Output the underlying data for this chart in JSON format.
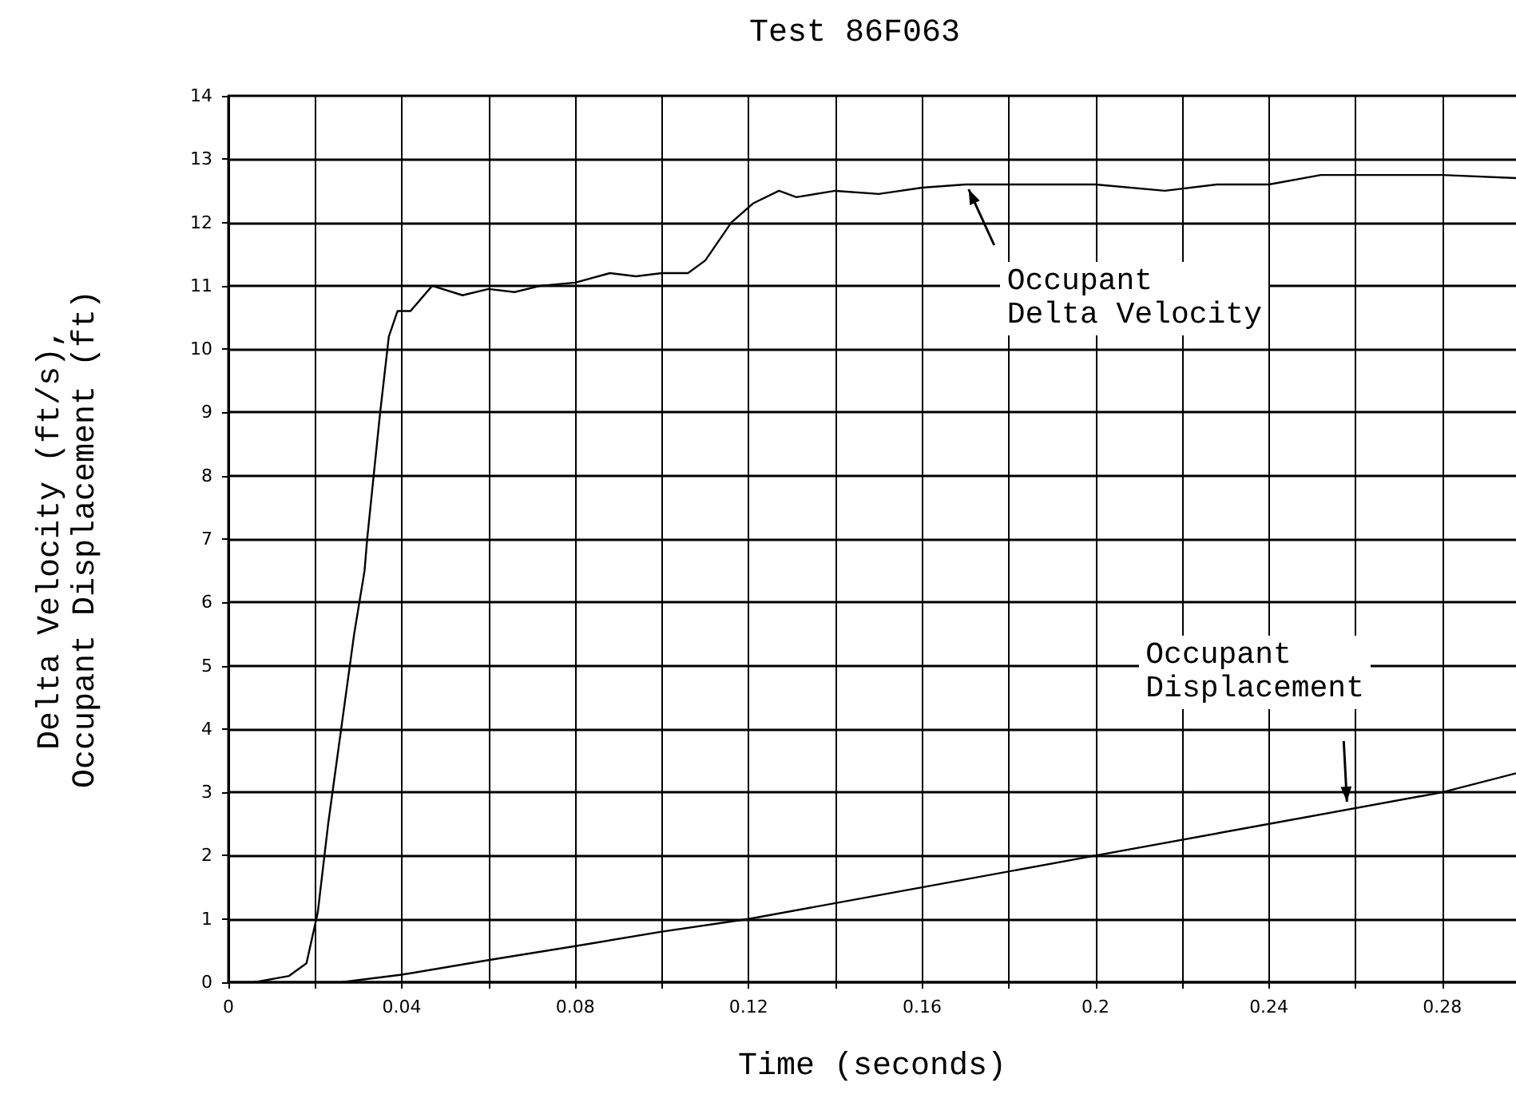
{
  "chart_data": {
    "type": "line",
    "title": "Test 86F063",
    "xlabel": "Time (seconds)",
    "ylabel": "Delta Velocity (ft/s),\nOccupant Displacement (ft)",
    "xlim": [
      0,
      0.297
    ],
    "ylim": [
      0,
      14
    ],
    "xticks": [
      0,
      {
        "value": 0.02,
        "label": null
      },
      0.04,
      {
        "value": 0.06,
        "label": null
      },
      0.08,
      {
        "value": 0.1,
        "label": null
      },
      0.12,
      {
        "value": 0.14,
        "label": null
      },
      0.16,
      {
        "value": 0.18,
        "label": null
      },
      0.2,
      {
        "value": 0.22,
        "label": null
      },
      0.24,
      {
        "value": 0.26,
        "label": null
      },
      0.28
    ],
    "yticks": [
      0,
      1,
      2,
      3,
      4,
      5,
      6,
      7,
      8,
      9,
      10,
      11,
      12,
      13,
      14
    ],
    "grid": true,
    "marker": "none",
    "line_style": "solid",
    "series": [
      {
        "color": "#000000",
        "x": [
          0.006,
          0.014,
          0.018,
          0.0206,
          0.023,
          0.026,
          0.029,
          0.0314,
          0.032,
          0.035,
          0.037,
          0.039,
          0.042,
          0.047,
          0.054,
          0.06,
          0.066,
          0.072,
          0.08,
          0.088,
          0.094,
          0.1,
          0.106,
          0.11,
          0.116,
          0.121,
          0.127,
          0.131,
          0.14,
          0.15,
          0.16,
          0.17,
          0.184,
          0.2,
          0.216,
          0.228,
          0.24,
          0.252,
          0.264,
          0.28,
          0.297
        ],
        "values": [
          0,
          0.1,
          0.3,
          1.1,
          2.5,
          4,
          5.5,
          6.5,
          7,
          9,
          10.2,
          10.6,
          10.6,
          11,
          10.85,
          10.95,
          10.9,
          11,
          11.05,
          11.2,
          11.15,
          11.2,
          11.2,
          11.4,
          12,
          12.3,
          12.5,
          12.4,
          12.5,
          12.45,
          12.55,
          12.6,
          12.6,
          12.6,
          12.5,
          12.6,
          12.6,
          12.75,
          12.75,
          12.75,
          12.7
        ]
      },
      {
        "color": "#000000",
        "x": [
          0.026,
          0.04,
          0.06,
          0.08,
          0.1,
          0.12,
          0.16,
          0.2,
          0.24,
          0.28,
          0.297
        ],
        "values": [
          0,
          0.12,
          0.35,
          0.57,
          0.8,
          1,
          1.5,
          2,
          2.5,
          3,
          3.3
        ]
      }
    ],
    "annotations": [
      {
        "text": "Occupant\nDelta Velocity",
        "x": 0.17,
        "y": 12.6
      },
      {
        "text": "Occupant\nDisplacement",
        "x": 0.258,
        "y": 2.75
      }
    ]
  }
}
